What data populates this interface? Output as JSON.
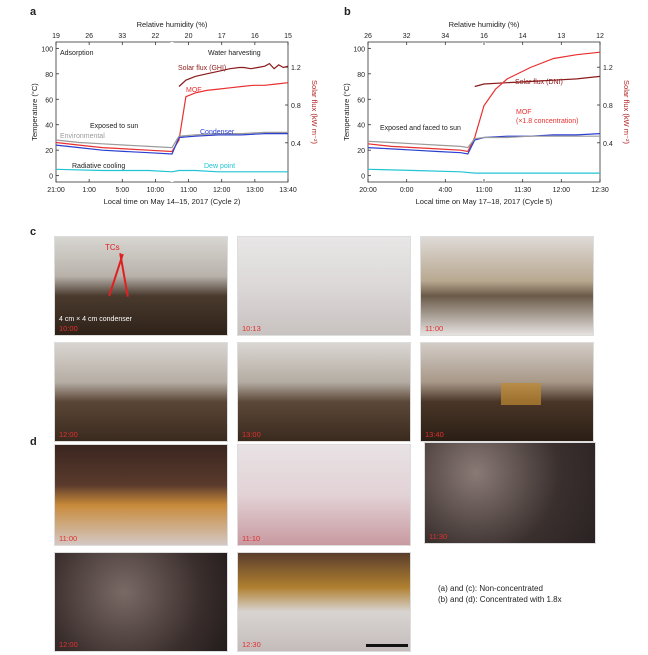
{
  "panels": {
    "a": {
      "letter": "a",
      "chart_data": {
        "type": "line",
        "top_xlabel": "Relative humidity (%)",
        "top_ticks": [
          "19",
          "26",
          "33",
          "22",
          "20",
          "17",
          "16",
          "15"
        ],
        "xlabel": "Local time on May 14–15, 2017 (Cycle 2)",
        "x_ticks": [
          "21:00",
          "1:00",
          "5:00",
          "10:00",
          "11:00",
          "12:00",
          "13:00",
          "13:40"
        ],
        "ylabel": "Temperature (°C)",
        "ylim": [
          -5,
          105
        ],
        "y_ticks": [
          0,
          20,
          40,
          60,
          80,
          100
        ],
        "y2label": "Solar flux (kW m⁻²)",
        "y2_ticks": [
          "0.4",
          "0.8",
          "1.2"
        ],
        "annotations": {
          "adsorption": "Adsorption",
          "harvesting": "Water harvesting",
          "exposed": "Exposed to sun",
          "environment": "Environmental",
          "radiative": "Radiative cooling"
        },
        "series": [
          {
            "name": "Solar flux (GHI)",
            "color": "#8b1a1a",
            "x": [
              5.3,
              5.6,
              6,
              6.5,
              7,
              7.5,
              7.9,
              8.1,
              8.4,
              8.7,
              9,
              9.2,
              9.4,
              9.6,
              9.8,
              10
            ],
            "y": [
              70,
              75,
              78,
              80,
              82,
              84,
              85,
              85,
              84,
              85,
              86,
              88,
              84,
              87,
              85,
              86
            ]
          },
          {
            "name": "MOF",
            "color": "#e83030",
            "x": [
              0,
              1,
              2,
              3,
              4,
              5,
              5.3,
              5.6,
              6,
              6.5,
              7,
              7.5,
              8,
              8.5,
              9,
              9.5,
              10
            ],
            "y": [
              26,
              24,
              22,
              21,
              20,
              19,
              28,
              62,
              65,
              67,
              68,
              69,
              70,
              71,
              71,
              72,
              73
            ]
          },
          {
            "name": "Condenser",
            "color": "#2a3ecf",
            "x": [
              0,
              1,
              2,
              3,
              4,
              5,
              5.3,
              6,
              7,
              8,
              9,
              10
            ],
            "y": [
              24,
              22,
              20,
              19,
              18,
              17,
              30,
              31,
              32,
              32,
              33,
              33
            ]
          },
          {
            "name": "Environmental",
            "color": "#9a9a9a",
            "x": [
              0,
              1,
              2,
              3,
              4,
              5,
              5.3,
              6,
              7,
              8,
              9,
              10
            ],
            "y": [
              28,
              26,
              25,
              24,
              23,
              22,
              31,
              32,
              33,
              33,
              34,
              34
            ]
          },
          {
            "name": "Dew point",
            "color": "#22c4d4",
            "x": [
              0,
              2,
              4,
              5,
              5.3,
              6,
              7,
              8,
              9,
              10
            ],
            "y": [
              5,
              4,
              4,
              3,
              4,
              4,
              3,
              3,
              3,
              3
            ]
          }
        ]
      }
    },
    "b": {
      "letter": "b",
      "chart_data": {
        "type": "line",
        "top_xlabel": "Relative humidity (%)",
        "top_ticks": [
          "26",
          "32",
          "34",
          "16",
          "14",
          "13",
          "12"
        ],
        "xlabel": "Local time on May 17–18, 2017 (Cycle 5)",
        "x_ticks": [
          "20:00",
          "0:00",
          "4:00",
          "11:00",
          "11:30",
          "12:00",
          "12:30"
        ],
        "ylabel": "Temperature (°C)",
        "ylim": [
          -5,
          105
        ],
        "y_ticks": [
          0,
          20,
          40,
          60,
          80,
          100
        ],
        "y2label": "Solar flux (kW m⁻²)",
        "y2_ticks": [
          "0.4",
          "0.8",
          "1.2"
        ],
        "annotations": {
          "exposed": "Exposed and faced to sun",
          "mof_label": "MOF",
          "mof_note": "(×1.8 concentration)"
        },
        "series": [
          {
            "name": "Solar flux (DNI)",
            "color": "#8b1a1a",
            "x": [
              4.6,
              5,
              6,
              7,
              8,
              9,
              10
            ],
            "y": [
              70,
              72,
              73,
              74,
              75,
              76,
              78
            ]
          },
          {
            "name": "MOF",
            "color": "#e83030",
            "x": [
              0,
              1,
              2,
              3,
              4,
              4.3,
              4.6,
              5,
              5.5,
              6,
              7,
              8,
              9,
              10
            ],
            "y": [
              25,
              23,
              22,
              21,
              20,
              19,
              30,
              55,
              68,
              76,
              85,
              92,
              95,
              97
            ]
          },
          {
            "name": "Condenser",
            "color": "#2a3ecf",
            "x": [
              0,
              1,
              2,
              3,
              4,
              4.3,
              4.6,
              5,
              6,
              7,
              8,
              9,
              10
            ],
            "y": [
              22,
              21,
              20,
              19,
              18,
              17,
              28,
              30,
              31,
              31,
              32,
              32,
              33
            ]
          },
          {
            "name": "Environmental",
            "color": "#9a9a9a",
            "x": [
              0,
              1,
              2,
              3,
              4,
              4.3,
              4.6,
              5,
              6,
              7,
              8,
              9,
              10
            ],
            "y": [
              27,
              26,
              25,
              24,
              23,
              22,
              29,
              30,
              30,
              31,
              31,
              31,
              31
            ]
          },
          {
            "name": "Dew point",
            "color": "#22c4d4",
            "x": [
              0,
              2,
              4,
              4.6,
              6,
              8,
              10
            ],
            "y": [
              5,
              4,
              3,
              2,
              2,
              2,
              2
            ]
          }
        ]
      }
    },
    "c": {
      "letter": "c",
      "tcs_label": "TCs",
      "condenser_label": "4 cm × 4 cm condenser",
      "times": [
        "10:00",
        "10:13",
        "11:00",
        "12:00",
        "13:00",
        "13:40"
      ]
    },
    "d": {
      "letter": "d",
      "times": [
        "11:00",
        "11:10",
        "11:30",
        "12:00",
        "12:30"
      ],
      "notes": [
        "(a) and (c): Non-concentrated",
        "(b) and (d): Concentrated with 1.8x"
      ]
    }
  }
}
